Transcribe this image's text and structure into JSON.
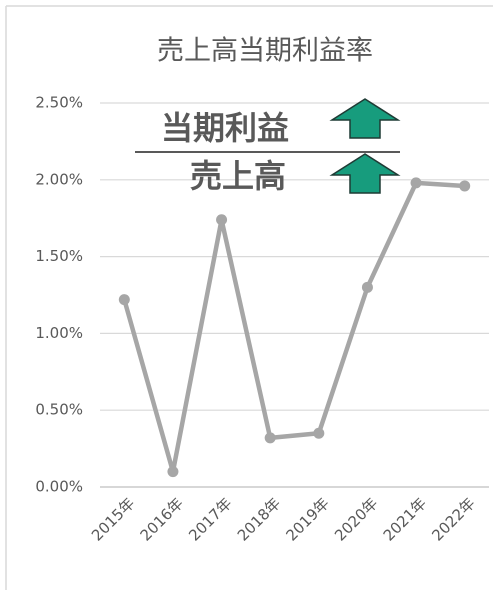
{
  "chart_data": {
    "type": "line",
    "title": "売上高当期利益率",
    "annotations": [
      "当期利益",
      "売上高"
    ],
    "categories": [
      "2015年",
      "2016年",
      "2017年",
      "2018年",
      "2019年",
      "2020年",
      "2021年",
      "2022年"
    ],
    "series": [
      {
        "name": "売上高当期利益率",
        "color": "#a6a6a6",
        "values": [
          1.22,
          0.1,
          1.74,
          0.32,
          0.35,
          1.3,
          1.98,
          1.96
        ]
      }
    ],
    "ylim": [
      0,
      2.5
    ],
    "yticks": [
      {
        "value": 0,
        "label": "0.00%"
      },
      {
        "value": 0.5,
        "label": "0.50%"
      },
      {
        "value": 1,
        "label": "1.00%"
      },
      {
        "value": 1.5,
        "label": "1.50%"
      },
      {
        "value": 2,
        "label": "2.00%"
      },
      {
        "value": 2.5,
        "label": "2.50%"
      }
    ],
    "grid": true
  }
}
